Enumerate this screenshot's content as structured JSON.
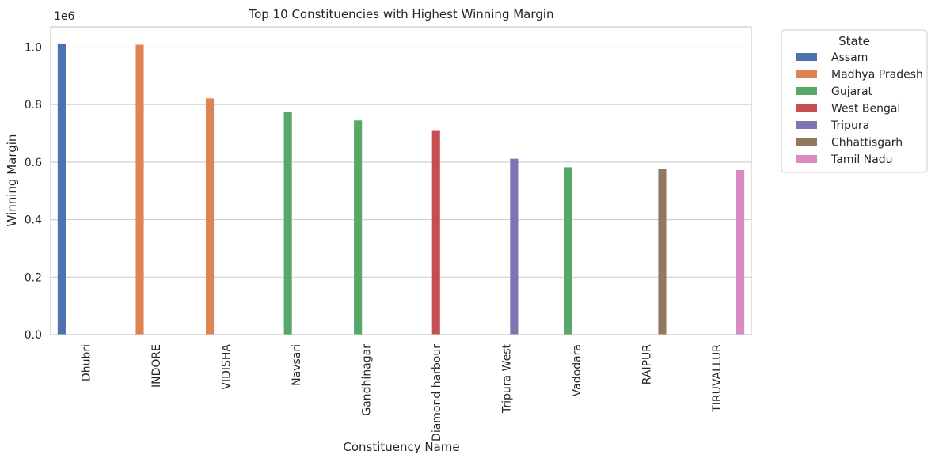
{
  "chart_data": {
    "type": "bar",
    "title": "Top 10 Constituencies with Highest Winning Margin",
    "xlabel": "Constituency Name",
    "ylabel": "Winning Margin",
    "y_offset_label": "1e6",
    "ylim": [
      0,
      1.07
    ],
    "yticks": [
      "0.0",
      "0.2",
      "0.4",
      "0.6",
      "0.8",
      "1.0"
    ],
    "y_tick_values": [
      0,
      0.2,
      0.4,
      0.6,
      0.8,
      1.0
    ],
    "y_scale": 1000000,
    "grid": "horizontal",
    "categories": [
      "Dhubri",
      "INDORE",
      "VIDISHA",
      "Navsari",
      "Gandhinagar",
      "Diamond harbour",
      "Tripura West",
      "Vadodara",
      "RAIPUR",
      "TIRUVALLUR"
    ],
    "values": [
      1012476,
      1008077,
      821408,
      773551,
      744716,
      710930,
      611578,
      582126,
      575285,
      572155
    ],
    "bar_states": [
      "Assam",
      "Madhya Pradesh",
      "Madhya Pradesh",
      "Gujarat",
      "Gujarat",
      "West Bengal",
      "Tripura",
      "Gujarat",
      "Chhattisgarh",
      "Tamil Nadu"
    ],
    "legend": {
      "title": "State",
      "placement": "outside-right-top",
      "entries": [
        {
          "name": "Assam",
          "color": "#4c72b0"
        },
        {
          "name": "Madhya Pradesh",
          "color": "#dd8452"
        },
        {
          "name": "Gujarat",
          "color": "#55a868"
        },
        {
          "name": "West Bengal",
          "color": "#c44e52"
        },
        {
          "name": "Tripura",
          "color": "#8172b3"
        },
        {
          "name": "Chhattisgarh",
          "color": "#937860"
        },
        {
          "name": "Tamil Nadu",
          "color": "#da8bc3"
        }
      ]
    }
  }
}
